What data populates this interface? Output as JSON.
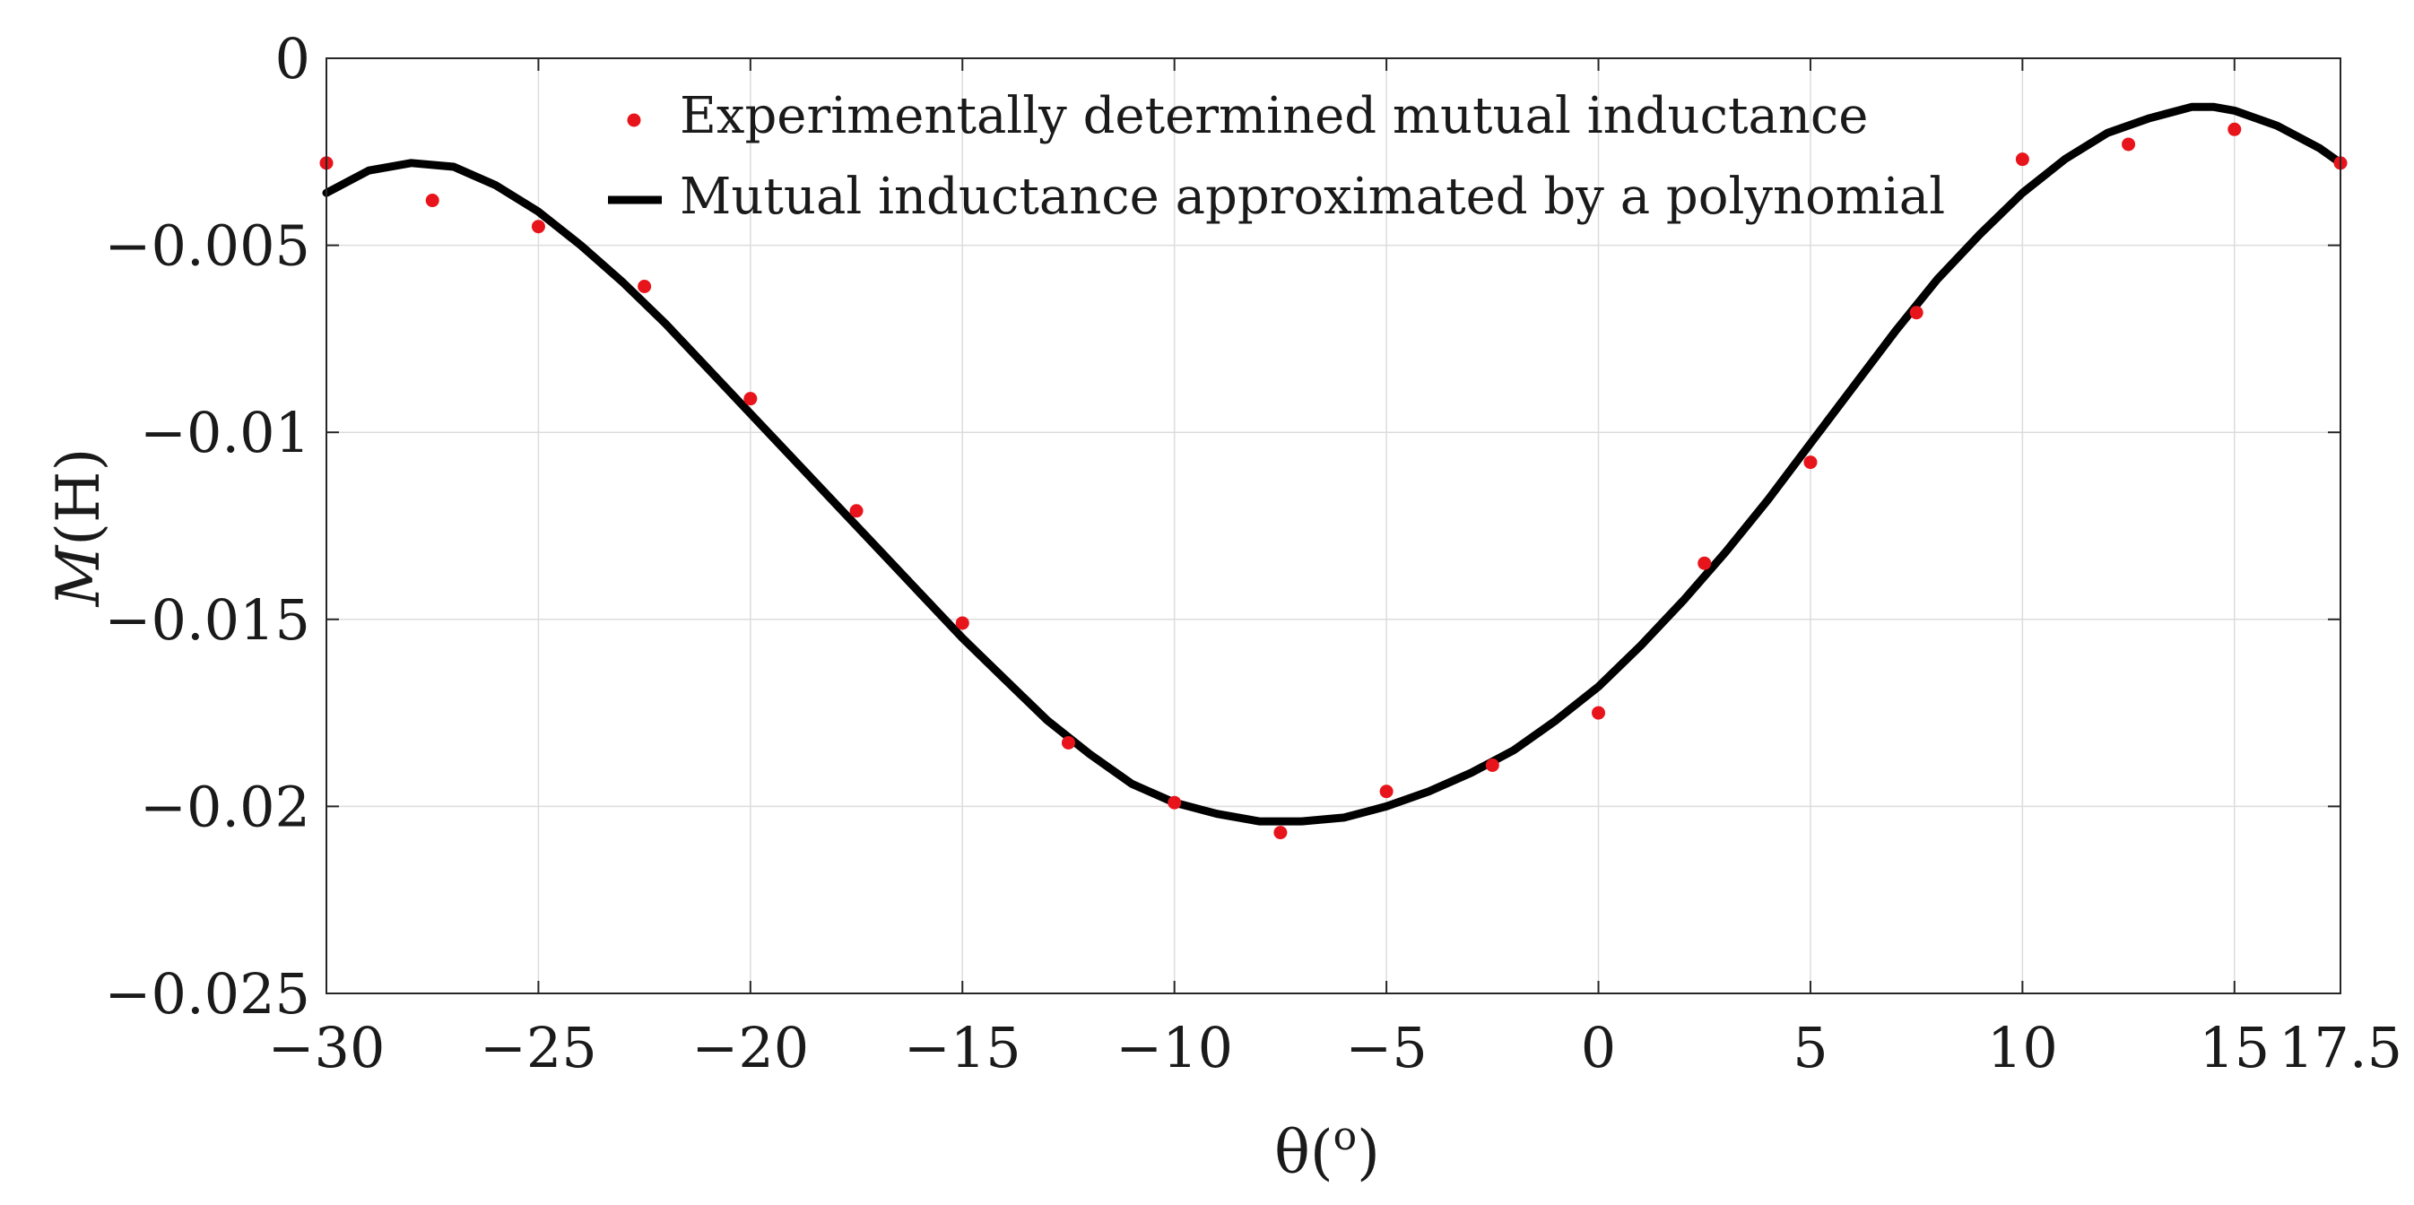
{
  "chart_data": {
    "type": "scatter",
    "title": "",
    "xlabel": "θ(",
    "xlabel_sup": "o",
    "xlabel_close": ")",
    "ylabel": "M",
    "ylabel_unit": "(H)",
    "xlim": [
      -30,
      17.5
    ],
    "ylim": [
      -0.025,
      0
    ],
    "xticks": [
      -30,
      -25,
      -20,
      -15,
      -10,
      -5,
      0,
      5,
      10,
      15,
      17.5
    ],
    "xtick_labels": [
      "−30",
      "−25",
      "−20",
      "−15",
      "−10",
      "−5",
      "0",
      "5",
      "10",
      "15",
      "17.5"
    ],
    "yticks": [
      0,
      -0.005,
      -0.01,
      -0.015,
      -0.02,
      -0.025
    ],
    "ytick_labels": [
      "0",
      "−0.005",
      "−0.01",
      "−0.015",
      "−0.02",
      "−0.025"
    ],
    "grid": true,
    "legend_position": "top-center",
    "series": [
      {
        "name": "Experimentally determined mutual inductance",
        "kind": "scatter",
        "color": "#e8141b",
        "x": [
          -30,
          -27.5,
          -25,
          -22.5,
          -20,
          -17.5,
          -15,
          -12.5,
          -10,
          -7.5,
          -5,
          -2.5,
          0,
          2.5,
          5,
          7.5,
          10,
          12.5,
          15,
          17.5
        ],
        "y": [
          -0.0028,
          -0.0038,
          -0.0045,
          -0.0061,
          -0.0091,
          -0.0121,
          -0.0151,
          -0.0183,
          -0.0199,
          -0.0207,
          -0.0196,
          -0.0189,
          -0.0175,
          -0.0135,
          -0.0108,
          -0.0068,
          -0.0027,
          -0.0023,
          -0.0019,
          -0.0028
        ]
      },
      {
        "name": "Mutual inductance approximated by a polynomial",
        "kind": "line",
        "color": "#000000",
        "x": [
          -30,
          -29,
          -28,
          -27,
          -26,
          -25,
          -24,
          -23,
          -22,
          -21,
          -20,
          -19,
          -18,
          -17,
          -16,
          -15,
          -14,
          -13,
          -12,
          -11,
          -10,
          -9,
          -8,
          -7,
          -6,
          -5,
          -4,
          -3,
          -2,
          -1,
          0,
          1,
          2,
          3,
          4,
          5,
          6,
          7,
          8,
          9,
          10,
          11,
          12,
          13,
          14,
          14.5,
          15,
          16,
          17,
          17.5
        ],
        "y": [
          -0.0036,
          -0.003,
          -0.0028,
          -0.0029,
          -0.0034,
          -0.0041,
          -0.005,
          -0.006,
          -0.0071,
          -0.0083,
          -0.0095,
          -0.0107,
          -0.0119,
          -0.0131,
          -0.0143,
          -0.0155,
          -0.0166,
          -0.0177,
          -0.0186,
          -0.0194,
          -0.0199,
          -0.0202,
          -0.0204,
          -0.0204,
          -0.0203,
          -0.02,
          -0.0196,
          -0.0191,
          -0.0185,
          -0.0177,
          -0.0168,
          -0.0157,
          -0.0145,
          -0.0132,
          -0.0118,
          -0.0103,
          -0.0088,
          -0.0073,
          -0.0059,
          -0.0047,
          -0.0036,
          -0.0027,
          -0.002,
          -0.0016,
          -0.0013,
          -0.0013,
          -0.0014,
          -0.0018,
          -0.0024,
          -0.0028
        ]
      }
    ]
  }
}
